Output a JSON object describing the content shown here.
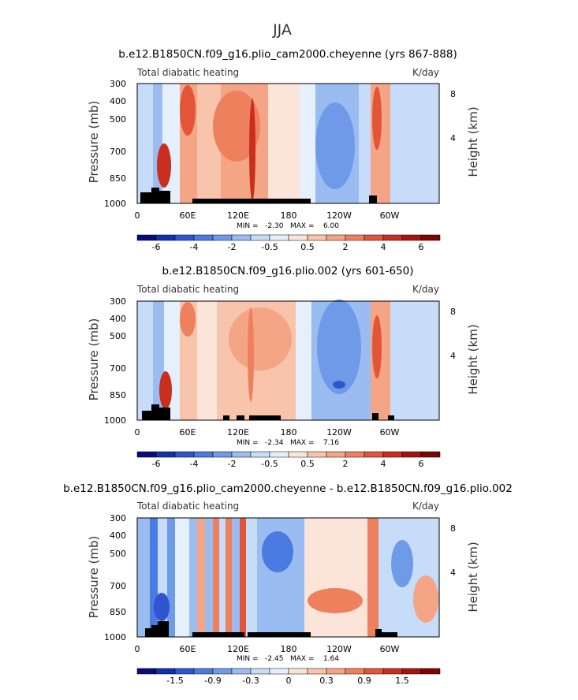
{
  "title": "JJA",
  "chart_data": [
    {
      "type": "heatmap",
      "title": "b.e12.B1850CN.f09_g16.plio_cam2000.cheyenne (yrs 867-888)",
      "left_label": "Total diabatic heating",
      "right_label": "K/day",
      "ylabel": "Pressure (mb)",
      "ylabel_right": "Height (km)",
      "yticks": [
        "300",
        "400",
        "500",
        "700",
        "850",
        "1000"
      ],
      "yticks_right": [
        "8",
        "4"
      ],
      "xticks": [
        "0",
        "60E",
        "120E",
        "180",
        "120W",
        "60W"
      ],
      "stats": "MIN =   -2.30   MAX =    6.00",
      "colorbar_ticks": [
        "-6",
        "-4",
        "-2",
        "-0.5",
        "0.5",
        "2",
        "4",
        "6"
      ]
    },
    {
      "type": "heatmap",
      "title": "b.e12.B1850CN.f09_g16.plio.002 (yrs 601-650)",
      "left_label": "Total diabatic heating",
      "right_label": "K/day",
      "ylabel": "Pressure (mb)",
      "ylabel_right": "Height (km)",
      "yticks": [
        "300",
        "400",
        "500",
        "700",
        "850",
        "1000"
      ],
      "yticks_right": [
        "8",
        "4"
      ],
      "xticks": [
        "0",
        "60E",
        "120E",
        "180",
        "120W",
        "60W"
      ],
      "stats": "MIN =   -2.34   MAX =    7.16",
      "colorbar_ticks": [
        "-6",
        "-4",
        "-2",
        "-0.5",
        "0.5",
        "2",
        "4",
        "6"
      ]
    },
    {
      "type": "heatmap",
      "title": "b.e12.B1850CN.f09_g16.plio_cam2000.cheyenne - b.e12.B1850CN.f09_g16.plio.002",
      "left_label": "Total diabatic heating",
      "right_label": "K/day",
      "ylabel": "Pressure (mb)",
      "ylabel_right": "Height (km)",
      "yticks": [
        "300",
        "400",
        "500",
        "700",
        "850",
        "1000"
      ],
      "yticks_right": [
        "8",
        "4"
      ],
      "xticks": [
        "0",
        "60E",
        "120E",
        "180",
        "120W",
        "60W"
      ],
      "stats": "MIN =   -2.45   MAX =    1.64",
      "colorbar_ticks": [
        "-1.5",
        "-0.9",
        "-0.3",
        "0",
        "0.3",
        "0.9",
        "1.5"
      ]
    }
  ],
  "colorbar_colors": [
    "#0a0a7a",
    "#1030b0",
    "#2f55d0",
    "#4a7be0",
    "#6f9ae8",
    "#9bbcf0",
    "#c6dcf8",
    "#e6f0fc",
    "#fbe4d8",
    "#f8c4ab",
    "#f4a585",
    "#ee805e",
    "#e35538",
    "#c92f1f",
    "#a51410",
    "#7a0705"
  ]
}
